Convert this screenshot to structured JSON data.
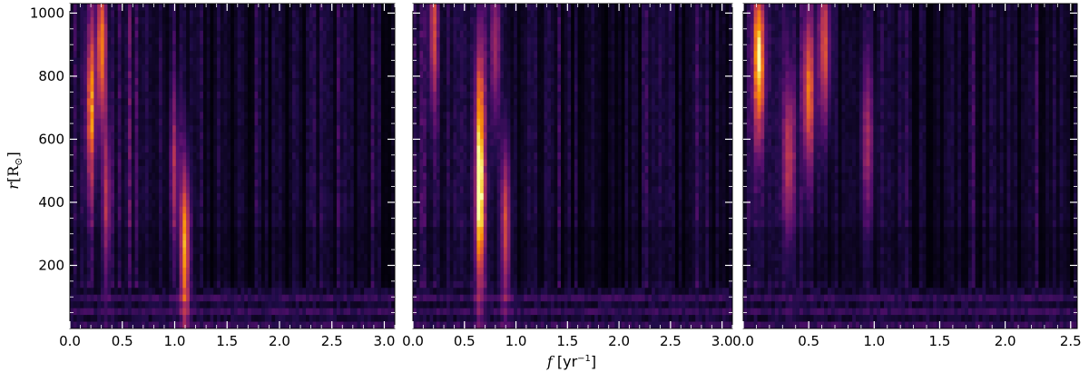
{
  "chart_data": [
    {
      "type": "heatmap",
      "panel": 1,
      "x_range": [
        0.0,
        3.1
      ],
      "y_range": [
        0,
        1030
      ],
      "x_ticks": [
        0.0,
        0.5,
        1.0,
        1.5,
        2.0,
        2.5,
        3.0
      ],
      "x_tick_labels": [
        "0.0",
        "0.5",
        "1.0",
        "1.5",
        "2.0",
        "2.5",
        "3.0"
      ],
      "y_ticks": [
        200,
        400,
        600,
        800,
        1000
      ],
      "y_tick_labels": [
        "200",
        "400",
        "600",
        "800",
        "1000"
      ],
      "colormap": "inferno",
      "hotspots": [
        {
          "f": 0.3,
          "r": 900,
          "intensity": 0.9
        },
        {
          "f": 0.2,
          "r": 700,
          "intensity": 0.7
        },
        {
          "f": 1.1,
          "r": 260,
          "intensity": 0.95
        },
        {
          "f": 1.0,
          "r": 500,
          "intensity": 0.45
        },
        {
          "f": 0.35,
          "r": 400,
          "intensity": 0.5
        }
      ]
    },
    {
      "type": "heatmap",
      "panel": 2,
      "x_range": [
        0.0,
        3.1
      ],
      "y_range": [
        0,
        1030
      ],
      "x_ticks": [
        0.0,
        0.5,
        1.0,
        1.5,
        2.0,
        2.5,
        3.0
      ],
      "x_tick_labels": [
        "0.0",
        "0.5",
        "1.0",
        "1.5",
        "2.0",
        "2.5",
        "3.0"
      ],
      "y_ticks": [
        200,
        400,
        600,
        800,
        1000
      ],
      "colormap": "inferno",
      "hotspots": [
        {
          "f": 0.65,
          "r": 350,
          "intensity": 1.0
        },
        {
          "f": 0.65,
          "r": 700,
          "intensity": 0.75
        },
        {
          "f": 0.9,
          "r": 320,
          "intensity": 0.7
        },
        {
          "f": 0.2,
          "r": 950,
          "intensity": 0.6
        },
        {
          "f": 0.8,
          "r": 900,
          "intensity": 0.5
        }
      ]
    },
    {
      "type": "heatmap",
      "panel": 3,
      "x_range": [
        0.0,
        2.55
      ],
      "y_range": [
        0,
        1030
      ],
      "x_ticks": [
        0.0,
        0.5,
        1.0,
        1.5,
        2.0,
        2.5
      ],
      "x_tick_labels": [
        "0.0",
        "0.5",
        "1.0",
        "1.5",
        "2.0",
        "2.5"
      ],
      "y_ticks": [
        200,
        400,
        600,
        800,
        1000
      ],
      "colormap": "inferno",
      "hotspots": [
        {
          "f": 0.12,
          "r": 850,
          "intensity": 1.0
        },
        {
          "f": 0.5,
          "r": 750,
          "intensity": 0.8
        },
        {
          "f": 0.62,
          "r": 900,
          "intensity": 0.7
        },
        {
          "f": 0.35,
          "r": 550,
          "intensity": 0.6
        },
        {
          "f": 0.95,
          "r": 600,
          "intensity": 0.45
        }
      ]
    }
  ],
  "labels": {
    "xlabel_f": "f",
    "xlabel_unit": " [yr",
    "xlabel_exp": "−1",
    "xlabel_close": "]",
    "ylabel_r": "r",
    "ylabel_R": "[R",
    "ylabel_sun": "⊙",
    "ylabel_close": "]"
  }
}
